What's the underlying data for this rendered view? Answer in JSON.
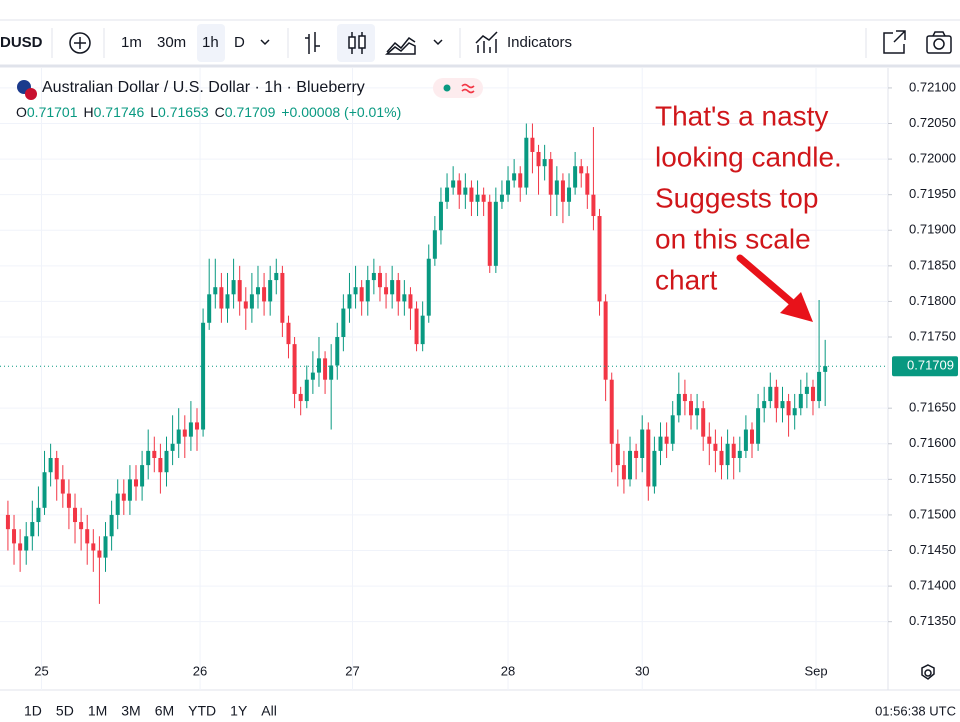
{
  "toolbar": {
    "symbol": "DUSD",
    "intervals": [
      "1m",
      "30m",
      "1h",
      "D"
    ],
    "indicators": "Indicators"
  },
  "chart_data": {
    "type": "candlestick",
    "title": "Australian Dollar / U.S. Dollar · 1h · Blueberry",
    "ohlc_letters": [
      "O",
      "H",
      "L",
      "C"
    ],
    "change": "+0.00008 (+0.01%)",
    "open": [
      0.715,
      0.7148,
      0.7146,
      0.7145,
      0.7147,
      0.7149,
      0.7151,
      0.7156,
      0.7158,
      0.7155,
      0.7153,
      0.7151,
      0.7149,
      0.7148,
      0.7146,
      0.7145,
      0.7144,
      0.7147,
      0.715,
      0.7153,
      0.7152,
      0.7155,
      0.7154,
      0.7157,
      0.7159,
      0.7158,
      0.7156,
      0.7159,
      0.716,
      0.7162,
      0.7161,
      0.7163,
      0.7162,
      0.7177,
      0.7181,
      0.7182,
      0.7179,
      0.7181,
      0.7183,
      0.718,
      0.7179,
      0.7181,
      0.7182,
      0.718,
      0.7183,
      0.7184,
      0.7177,
      0.7174,
      0.7167,
      0.7166,
      0.7169,
      0.717,
      0.7172,
      0.7169,
      0.7171,
      0.7175,
      0.7179,
      0.7181,
      0.7182,
      0.718,
      0.7183,
      0.7184,
      0.7182,
      0.7181,
      0.7183,
      0.718,
      0.7181,
      0.7179,
      0.7174,
      0.7178,
      0.7186,
      0.719,
      0.7194,
      0.7196,
      0.7197,
      0.7195,
      0.7196,
      0.7194,
      0.7195,
      0.7194,
      0.7185,
      0.7194,
      0.7195,
      0.7197,
      0.7198,
      0.7196,
      0.7203,
      0.7201,
      0.7199,
      0.72,
      0.7195,
      0.7197,
      0.7194,
      0.7196,
      0.7199,
      0.7198,
      0.7195,
      0.7192,
      0.718,
      0.7169,
      0.716,
      0.7157,
      0.7155,
      0.7159,
      0.7158,
      0.7162,
      0.7154,
      0.7159,
      0.7161,
      0.716,
      0.7164,
      0.7167,
      0.7166,
      0.7164,
      0.7165,
      0.7161,
      0.716,
      0.7159,
      0.7157,
      0.716,
      0.7158,
      0.7159,
      0.7162,
      0.716,
      0.7165,
      0.7166,
      0.7168,
      0.7165,
      0.7166,
      0.7164,
      0.7165,
      0.7167,
      0.7168,
      0.7166,
      0.71701
    ],
    "high": [
      0.7152,
      0.715,
      0.7148,
      0.7149,
      0.7152,
      0.7154,
      0.7159,
      0.716,
      0.7159,
      0.7157,
      0.7155,
      0.7153,
      0.7151,
      0.715,
      0.7148,
      0.7147,
      0.7149,
      0.7152,
      0.7155,
      0.7155,
      0.7157,
      0.7157,
      0.7159,
      0.7162,
      0.7161,
      0.716,
      0.7161,
      0.7164,
      0.7165,
      0.7164,
      0.7166,
      0.7165,
      0.7179,
      0.7186,
      0.7186,
      0.7184,
      0.7184,
      0.7186,
      0.7185,
      0.7182,
      0.7184,
      0.7185,
      0.7184,
      0.7185,
      0.7186,
      0.7185,
      0.7178,
      0.7175,
      0.7168,
      0.7171,
      0.7173,
      0.7175,
      0.7173,
      0.7174,
      0.7177,
      0.7181,
      0.7184,
      0.7185,
      0.7183,
      0.7185,
      0.7186,
      0.7185,
      0.7184,
      0.7185,
      0.7184,
      0.7183,
      0.7182,
      0.718,
      0.718,
      0.7188,
      0.7192,
      0.7196,
      0.7198,
      0.7199,
      0.7198,
      0.7198,
      0.7197,
      0.7197,
      0.7196,
      0.7195,
      0.7196,
      0.7197,
      0.7199,
      0.72,
      0.7199,
      0.7205,
      0.7205,
      0.7202,
      0.7202,
      0.7201,
      0.7199,
      0.7198,
      0.7198,
      0.7201,
      0.72,
      0.7199,
      0.72045,
      0.7193,
      0.7181,
      0.717,
      0.7162,
      0.7159,
      0.7161,
      0.716,
      0.7164,
      0.7163,
      0.7161,
      0.7163,
      0.7163,
      0.7166,
      0.717,
      0.7169,
      0.7167,
      0.7167,
      0.7166,
      0.7163,
      0.7162,
      0.7161,
      0.7162,
      0.7161,
      0.7161,
      0.7164,
      0.7163,
      0.7167,
      0.7168,
      0.717,
      0.7169,
      0.7168,
      0.7167,
      0.7167,
      0.7169,
      0.717,
      0.7169,
      0.71802,
      0.71746
    ],
    "low": [
      0.7145,
      0.7143,
      0.7142,
      0.7143,
      0.7145,
      0.7147,
      0.715,
      0.7154,
      0.7152,
      0.7151,
      0.7148,
      0.7146,
      0.7145,
      0.7143,
      0.7142,
      0.71375,
      0.7142,
      0.7145,
      0.7148,
      0.715,
      0.715,
      0.7152,
      0.7152,
      0.7155,
      0.7156,
      0.7153,
      0.7154,
      0.7157,
      0.7158,
      0.7158,
      0.7159,
      0.7159,
      0.7161,
      0.7176,
      0.7179,
      0.7177,
      0.7177,
      0.7179,
      0.7178,
      0.7176,
      0.7177,
      0.7179,
      0.7178,
      0.7178,
      0.7181,
      0.7175,
      0.7172,
      0.7165,
      0.7164,
      0.7165,
      0.7167,
      0.7168,
      0.7167,
      0.7162,
      0.7169,
      0.7173,
      0.7177,
      0.7179,
      0.7178,
      0.7178,
      0.7181,
      0.718,
      0.7179,
      0.7179,
      0.7178,
      0.7178,
      0.7176,
      0.7173,
      0.7173,
      0.7177,
      0.7185,
      0.7188,
      0.7193,
      0.7195,
      0.7193,
      0.7193,
      0.7192,
      0.7192,
      0.7192,
      0.7184,
      0.7184,
      0.7193,
      0.7194,
      0.7196,
      0.7194,
      0.7195,
      0.7198,
      0.7195,
      0.7197,
      0.7192,
      0.7192,
      0.7191,
      0.7192,
      0.7195,
      0.7196,
      0.7193,
      0.719,
      0.7178,
      0.7166,
      0.7156,
      0.7154,
      0.7153,
      0.7154,
      0.7155,
      0.7156,
      0.7152,
      0.7153,
      0.7157,
      0.7158,
      0.7159,
      0.7163,
      0.7164,
      0.7162,
      0.7162,
      0.7159,
      0.7157,
      0.7156,
      0.7155,
      0.7155,
      0.7155,
      0.7156,
      0.7158,
      0.7158,
      0.7159,
      0.7163,
      0.7165,
      0.7163,
      0.7163,
      0.7161,
      0.7162,
      0.7164,
      0.7165,
      0.7164,
      0.7165,
      0.71653
    ],
    "close": [
      0.7148,
      0.7146,
      0.7145,
      0.7147,
      0.7149,
      0.7151,
      0.7156,
      0.7158,
      0.7155,
      0.7153,
      0.7151,
      0.7149,
      0.7148,
      0.7146,
      0.7145,
      0.7144,
      0.7147,
      0.715,
      0.7153,
      0.7152,
      0.7155,
      0.7154,
      0.7157,
      0.7159,
      0.7158,
      0.7156,
      0.7159,
      0.716,
      0.7162,
      0.7161,
      0.7163,
      0.7162,
      0.7177,
      0.7181,
      0.7182,
      0.7179,
      0.7181,
      0.7183,
      0.718,
      0.7179,
      0.7181,
      0.7182,
      0.718,
      0.7183,
      0.7184,
      0.7177,
      0.7174,
      0.7167,
      0.7166,
      0.7169,
      0.717,
      0.7172,
      0.7169,
      0.7171,
      0.7175,
      0.7179,
      0.7181,
      0.7182,
      0.718,
      0.7183,
      0.7184,
      0.7182,
      0.7181,
      0.7183,
      0.718,
      0.7181,
      0.7179,
      0.7174,
      0.7178,
      0.7186,
      0.719,
      0.7194,
      0.7196,
      0.7197,
      0.7195,
      0.7196,
      0.7194,
      0.7195,
      0.7194,
      0.7185,
      0.7194,
      0.7195,
      0.7197,
      0.7198,
      0.7196,
      0.7203,
      0.7201,
      0.7199,
      0.72,
      0.7195,
      0.7197,
      0.7194,
      0.7196,
      0.7199,
      0.7198,
      0.7195,
      0.7192,
      0.718,
      0.7169,
      0.716,
      0.7157,
      0.7155,
      0.7159,
      0.7158,
      0.7162,
      0.7154,
      0.7159,
      0.7161,
      0.716,
      0.7164,
      0.7167,
      0.7166,
      0.7164,
      0.7165,
      0.7161,
      0.716,
      0.7159,
      0.7157,
      0.716,
      0.7158,
      0.7159,
      0.7162,
      0.716,
      0.7165,
      0.7166,
      0.7168,
      0.7165,
      0.7166,
      0.7164,
      0.7165,
      0.7167,
      0.7168,
      0.7166,
      0.71701,
      0.71709
    ],
    "up_color": "#089981",
    "down_color": "#f23645",
    "xlim": [
      -1.3,
      144.3
    ],
    "ylim": [
      0.71254,
      0.72128
    ],
    "xticks": [
      {
        "value": 5.5,
        "label": "25"
      },
      {
        "value": 31.5,
        "label": "26"
      },
      {
        "value": 56.5,
        "label": "27"
      },
      {
        "value": 82,
        "label": "28"
      },
      {
        "value": 104,
        "label": "30"
      },
      {
        "value": 132.5,
        "label": "Sep"
      }
    ],
    "yticks": [
      {
        "value": 0.721,
        "label": "0.72100"
      },
      {
        "value": 0.7205,
        "label": "0.72050"
      },
      {
        "value": 0.72,
        "label": "0.72000"
      },
      {
        "value": 0.7195,
        "label": "0.71950"
      },
      {
        "value": 0.719,
        "label": "0.71900"
      },
      {
        "value": 0.7185,
        "label": "0.71850"
      },
      {
        "value": 0.718,
        "label": "0.71800"
      },
      {
        "value": 0.7175,
        "label": "0.71750"
      },
      {
        "value": 0.7165,
        "label": "0.71650"
      },
      {
        "value": 0.716,
        "label": "0.71600"
      },
      {
        "value": 0.7155,
        "label": "0.71550"
      },
      {
        "value": 0.715,
        "label": "0.71500"
      },
      {
        "value": 0.7145,
        "label": "0.71450"
      },
      {
        "value": 0.714,
        "label": "0.71400"
      },
      {
        "value": 0.7135,
        "label": "0.71350"
      }
    ],
    "grid": true,
    "annotation": [
      "That's a nasty",
      "looking candle.",
      "Suggests top",
      "on this scale",
      "chart"
    ]
  },
  "ranges": [
    "1D",
    "5D",
    "1M",
    "3M",
    "6M",
    "YTD",
    "1Y",
    "All"
  ],
  "clock": "01:56:38 UTC"
}
